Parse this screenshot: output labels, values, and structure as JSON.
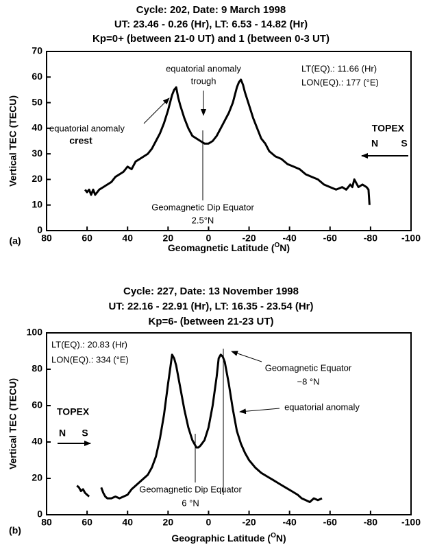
{
  "chart_data": [
    {
      "type": "line",
      "title": [
        "Cycle: 202, Date: 9 March 1998",
        "UT: 23.46 - 0.26 (Hr), LT: 6.53 - 14.82 (Hr)",
        "Kp=0+ (between 21-0 UT) and 1 (between 0-3 UT)"
      ],
      "panel_label": "(a)",
      "xlabel": [
        "Geomagnetic Latitude (",
        "O",
        "N)"
      ],
      "ylabel": "Vertical TEC (TECU)",
      "xlim": [
        80,
        -100
      ],
      "xticks": [
        80,
        60,
        40,
        20,
        0,
        -20,
        -40,
        -60,
        -80,
        -100
      ],
      "ylim": [
        0,
        70
      ],
      "yticks": [
        0,
        10,
        20,
        30,
        40,
        50,
        60,
        70
      ],
      "x": [
        61,
        60,
        59,
        58,
        57,
        56,
        55,
        54,
        52,
        50,
        48,
        46,
        44,
        42,
        40,
        38,
        36,
        34,
        32,
        30,
        28,
        26,
        24,
        22,
        20,
        18,
        17,
        16,
        15,
        14,
        12,
        10,
        8,
        6,
        4,
        2,
        0,
        -2,
        -4,
        -6,
        -8,
        -10,
        -12,
        -14,
        -15,
        -16,
        -17,
        -18,
        -20,
        -22,
        -24,
        -26,
        -28,
        -30,
        -33,
        -36,
        -39,
        -42,
        -45,
        -48,
        -51,
        -54,
        -57,
        -60,
        -63,
        -66,
        -68,
        -70,
        -71,
        -72,
        -74,
        -76,
        -78,
        -79,
        -79.5
      ],
      "series": [
        {
          "color": "#000000",
          "values": [
            16,
            15,
            16,
            14,
            16,
            14,
            15,
            16,
            17,
            18,
            19,
            21,
            22,
            23,
            25,
            24,
            27,
            28,
            29,
            30,
            32,
            35,
            38,
            42,
            47,
            53,
            55,
            56,
            52,
            49,
            44,
            40,
            37,
            36,
            35,
            34,
            34,
            35,
            37,
            40,
            43,
            46,
            50,
            56,
            58,
            59,
            57,
            54,
            49,
            44,
            40,
            36,
            34,
            31,
            29,
            28,
            26,
            25,
            24,
            22,
            21,
            20,
            18,
            17,
            16,
            17,
            16,
            18,
            17,
            20,
            17,
            18,
            17,
            16,
            10
          ]
        }
      ],
      "annotations": [
        "equatorial anomaly",
        "trough",
        "equatorial anomaly",
        "crest",
        "LT(EQ).: 11.66 (Hr)",
        "LON(EQ).: 177 (°E)",
        "TOPEX",
        "N",
        "S",
        "Geomagnetic Dip Equator",
        "2.5°N"
      ]
    },
    {
      "type": "line",
      "title": [
        "Cycle: 227, Date: 13 November 1998",
        "UT: 22.16 - 22.91 (Hr), LT: 16.35 - 23.54 (Hr)",
        "Kp=6- (between 21-23 UT)"
      ],
      "panel_label": "(b)",
      "xlabel": [
        "Geographic Latitude (",
        "O",
        "N)"
      ],
      "ylabel": "Vertical TEC (TECU)",
      "xlim": [
        80,
        -100
      ],
      "xticks": [
        80,
        60,
        40,
        20,
        0,
        -20,
        -40,
        -60,
        -80,
        -100
      ],
      "ylim": [
        0,
        100
      ],
      "yticks": [
        0,
        20,
        40,
        60,
        80,
        100
      ],
      "x": [
        65,
        64,
        63,
        62,
        61,
        60,
        59,
        56,
        53,
        52,
        51,
        50,
        48,
        46,
        44,
        42,
        40,
        38,
        36,
        34,
        32,
        30,
        28,
        26,
        24,
        22,
        20,
        19,
        18,
        17,
        16,
        14,
        12,
        10,
        8,
        6,
        5,
        4,
        2,
        0,
        -2,
        -4,
        -5,
        -6,
        -7,
        -8,
        -10,
        -12,
        -14,
        -16,
        -18,
        -20,
        -23,
        -26,
        -29,
        -32,
        -35,
        -38,
        -41,
        -44,
        -46,
        -48,
        -50,
        -52,
        -54,
        -56
      ],
      "series": [
        {
          "color": "#000000",
          "values": [
            16,
            15,
            13,
            14,
            12,
            11,
            10,
            null,
            15,
            12,
            10,
            9,
            9,
            10,
            9,
            10,
            11,
            14,
            16,
            18,
            20,
            22,
            26,
            32,
            42,
            55,
            72,
            80,
            88,
            86,
            82,
            70,
            58,
            48,
            41,
            37,
            37,
            38,
            41,
            48,
            60,
            76,
            86,
            88,
            87,
            84,
            72,
            58,
            46,
            39,
            34,
            30,
            26,
            23,
            21,
            19,
            17,
            15,
            13,
            11,
            9,
            8,
            7,
            9,
            8,
            9
          ]
        }
      ],
      "annotations": [
        "LT(EQ).: 20.83 (Hr)",
        "LON(EQ).: 334 (°E)",
        "Geomagnetic Equator",
        "−8 °N",
        "equatorial anomaly",
        "TOPEX",
        "N",
        "S",
        "Geomagnetic Dip Equator",
        "6 °N"
      ]
    }
  ]
}
